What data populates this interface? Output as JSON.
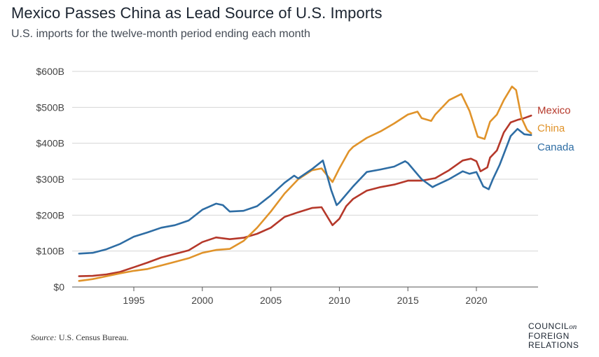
{
  "title": "Mexico Passes China as Lead Source of U.S. Imports",
  "subtitle": "U.S. imports for the twelve-month period ending each month",
  "source_label": "Source:",
  "source_text": "U.S. Census Bureau.",
  "logo": {
    "line1": "COUNCIL",
    "line1_small": "on",
    "line2": "FOREIGN",
    "line3": "RELATIONS"
  },
  "chart_data": {
    "type": "line",
    "xlim": [
      1990.5,
      2024.5
    ],
    "ylim": [
      0,
      600
    ],
    "y_ticks": [
      0,
      100,
      200,
      300,
      400,
      500,
      600
    ],
    "y_tick_labels": [
      "$0",
      "$100B",
      "$200B",
      "$300B",
      "$400B",
      "$500B",
      "$600B"
    ],
    "x_ticks": [
      1995,
      2000,
      2005,
      2010,
      2015,
      2020
    ],
    "x_tick_labels": [
      "1995",
      "2000",
      "2005",
      "2010",
      "2015",
      "2020"
    ],
    "grid": true,
    "legend": "direct labels at line ends",
    "series": [
      {
        "name": "Mexico",
        "color": "#b5382a",
        "label_y": 482,
        "points": [
          [
            1991,
            30
          ],
          [
            1992,
            31
          ],
          [
            1993,
            35
          ],
          [
            1994,
            42
          ],
          [
            1995,
            55
          ],
          [
            1996,
            68
          ],
          [
            1997,
            82
          ],
          [
            1998,
            92
          ],
          [
            1999,
            102
          ],
          [
            2000,
            125
          ],
          [
            2001,
            138
          ],
          [
            2002,
            133
          ],
          [
            2003,
            137
          ],
          [
            2004,
            148
          ],
          [
            2005,
            165
          ],
          [
            2006,
            195
          ],
          [
            2007,
            208
          ],
          [
            2008,
            220
          ],
          [
            2008.7,
            222
          ],
          [
            2009.5,
            172
          ],
          [
            2010,
            190
          ],
          [
            2010.5,
            225
          ],
          [
            2011,
            245
          ],
          [
            2012,
            268
          ],
          [
            2013,
            278
          ],
          [
            2014,
            285
          ],
          [
            2015,
            296
          ],
          [
            2016,
            296
          ],
          [
            2017,
            303
          ],
          [
            2018,
            325
          ],
          [
            2019,
            352
          ],
          [
            2019.6,
            357
          ],
          [
            2020,
            350
          ],
          [
            2020.3,
            322
          ],
          [
            2020.8,
            333
          ],
          [
            2021,
            360
          ],
          [
            2021.5,
            380
          ],
          [
            2022,
            430
          ],
          [
            2022.5,
            458
          ],
          [
            2023,
            465
          ],
          [
            2023.5,
            470
          ],
          [
            2024,
            477
          ]
        ]
      },
      {
        "name": "China",
        "color": "#e0932a",
        "label_y": 432,
        "points": [
          [
            1991,
            17
          ],
          [
            1992,
            22
          ],
          [
            1993,
            30
          ],
          [
            1994,
            38
          ],
          [
            1995,
            45
          ],
          [
            1996,
            50
          ],
          [
            1997,
            60
          ],
          [
            1998,
            70
          ],
          [
            1999,
            80
          ],
          [
            2000,
            95
          ],
          [
            2001,
            103
          ],
          [
            2002,
            106
          ],
          [
            2003,
            128
          ],
          [
            2004,
            165
          ],
          [
            2005,
            210
          ],
          [
            2006,
            260
          ],
          [
            2007,
            300
          ],
          [
            2008,
            325
          ],
          [
            2008.7,
            330
          ],
          [
            2009.5,
            292
          ],
          [
            2010,
            330
          ],
          [
            2010.7,
            378
          ],
          [
            2011,
            390
          ],
          [
            2012,
            415
          ],
          [
            2013,
            433
          ],
          [
            2014,
            455
          ],
          [
            2015,
            480
          ],
          [
            2015.7,
            488
          ],
          [
            2016,
            470
          ],
          [
            2016.7,
            462
          ],
          [
            2017,
            480
          ],
          [
            2018,
            520
          ],
          [
            2018.9,
            537
          ],
          [
            2019.5,
            490
          ],
          [
            2020.1,
            418
          ],
          [
            2020.6,
            412
          ],
          [
            2021,
            460
          ],
          [
            2021.5,
            480
          ],
          [
            2022,
            520
          ],
          [
            2022.6,
            558
          ],
          [
            2022.9,
            548
          ],
          [
            2023.3,
            470
          ],
          [
            2023.7,
            437
          ],
          [
            2024,
            428
          ]
        ]
      },
      {
        "name": "Canada",
        "color": "#2e6da4",
        "label_y": 380,
        "points": [
          [
            1991,
            93
          ],
          [
            1992,
            95
          ],
          [
            1993,
            105
          ],
          [
            1994,
            120
          ],
          [
            1995,
            140
          ],
          [
            1996,
            152
          ],
          [
            1997,
            165
          ],
          [
            1998,
            172
          ],
          [
            1999,
            185
          ],
          [
            2000,
            215
          ],
          [
            2001,
            232
          ],
          [
            2001.5,
            228
          ],
          [
            2002,
            210
          ],
          [
            2003,
            212
          ],
          [
            2004,
            225
          ],
          [
            2005,
            255
          ],
          [
            2006,
            290
          ],
          [
            2006.7,
            310
          ],
          [
            2007,
            302
          ],
          [
            2008,
            328
          ],
          [
            2008.8,
            352
          ],
          [
            2009.4,
            270
          ],
          [
            2009.8,
            228
          ],
          [
            2010,
            235
          ],
          [
            2011,
            280
          ],
          [
            2012,
            320
          ],
          [
            2013,
            327
          ],
          [
            2014,
            335
          ],
          [
            2014.8,
            350
          ],
          [
            2015,
            345
          ],
          [
            2016,
            300
          ],
          [
            2016.8,
            278
          ],
          [
            2017,
            282
          ],
          [
            2018,
            300
          ],
          [
            2019,
            322
          ],
          [
            2019.5,
            315
          ],
          [
            2020,
            320
          ],
          [
            2020.5,
            280
          ],
          [
            2020.9,
            272
          ],
          [
            2021.2,
            300
          ],
          [
            2021.7,
            340
          ],
          [
            2022,
            370
          ],
          [
            2022.5,
            420
          ],
          [
            2023,
            440
          ],
          [
            2023.5,
            425
          ],
          [
            2024,
            423
          ]
        ]
      }
    ]
  }
}
